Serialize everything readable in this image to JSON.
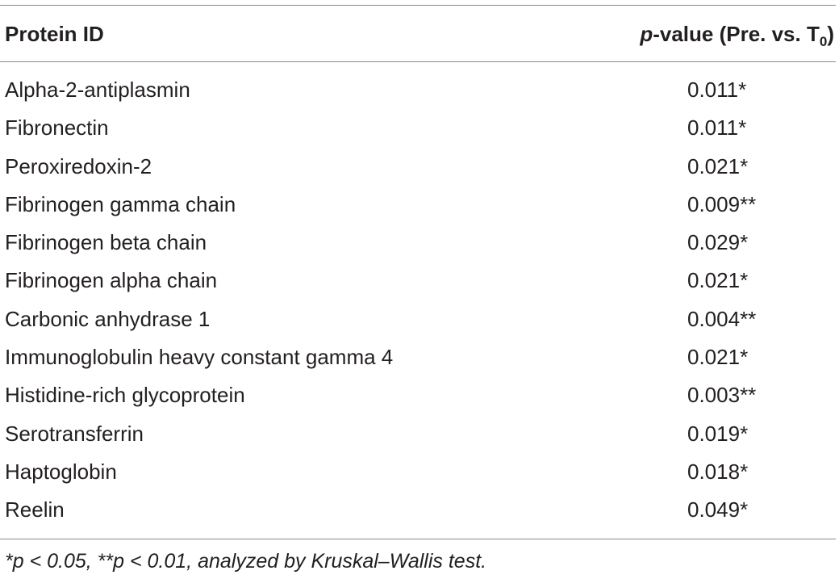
{
  "table": {
    "header": {
      "protein_id": "Protein ID",
      "pvalue_prefix": "p",
      "pvalue_middle": "-value (Pre. vs. T",
      "pvalue_sub": "0",
      "pvalue_suffix": ")"
    },
    "rows": [
      {
        "protein": "Alpha-2-antiplasmin",
        "pvalue": "0.011*"
      },
      {
        "protein": "Fibronectin",
        "pvalue": "0.011*"
      },
      {
        "protein": "Peroxiredoxin-2",
        "pvalue": "0.021*"
      },
      {
        "protein": "Fibrinogen gamma chain",
        "pvalue": "0.009**"
      },
      {
        "protein": "Fibrinogen beta chain",
        "pvalue": "0.029*"
      },
      {
        "protein": "Fibrinogen alpha chain",
        "pvalue": "0.021*"
      },
      {
        "protein": "Carbonic anhydrase 1",
        "pvalue": "0.004**"
      },
      {
        "protein": "Immunoglobulin heavy constant gamma 4",
        "pvalue": "0.021*"
      },
      {
        "protein": "Histidine-rich glycoprotein",
        "pvalue": "0.003**"
      },
      {
        "protein": "Serotransferrin",
        "pvalue": "0.019*"
      },
      {
        "protein": "Haptoglobin",
        "pvalue": "0.018*"
      },
      {
        "protein": "Reelin",
        "pvalue": "0.049*"
      }
    ],
    "footnote": "*p < 0.05, **p < 0.01, analyzed by Kruskal–Wallis test."
  }
}
